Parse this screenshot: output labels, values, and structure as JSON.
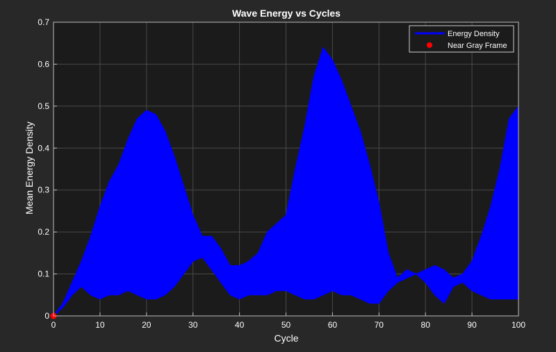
{
  "chart_data": {
    "type": "area",
    "title": "Wave Energy vs Cycles",
    "xlabel": "Cycle",
    "ylabel": "Mean Energy Density",
    "xlim": [
      0,
      100
    ],
    "ylim": [
      0,
      0.7
    ],
    "xticks": [
      0,
      10,
      20,
      30,
      40,
      50,
      60,
      70,
      80,
      90,
      100
    ],
    "yticks": [
      0,
      0.1,
      0.2,
      0.3,
      0.4,
      0.5,
      0.6,
      0.7
    ],
    "grid": true,
    "legend_position": "top-right",
    "series": [
      {
        "name": "Energy Density",
        "kind": "band",
        "color": "#0000ff",
        "x": [
          0,
          2,
          4,
          6,
          8,
          10,
          12,
          14,
          16,
          18,
          20,
          22,
          24,
          26,
          28,
          30,
          32,
          34,
          36,
          38,
          40,
          42,
          44,
          46,
          48,
          50,
          52,
          54,
          56,
          58,
          60,
          62,
          64,
          66,
          68,
          70,
          72,
          74,
          76,
          78,
          80,
          82,
          84,
          86,
          88,
          90,
          92,
          94,
          96,
          98,
          100
        ],
        "upper": [
          0.0,
          0.03,
          0.08,
          0.13,
          0.19,
          0.26,
          0.32,
          0.36,
          0.42,
          0.47,
          0.49,
          0.48,
          0.44,
          0.38,
          0.31,
          0.24,
          0.19,
          0.19,
          0.16,
          0.12,
          0.12,
          0.13,
          0.15,
          0.2,
          0.22,
          0.24,
          0.35,
          0.45,
          0.57,
          0.64,
          0.61,
          0.56,
          0.5,
          0.44,
          0.36,
          0.27,
          0.15,
          0.09,
          0.11,
          0.1,
          0.11,
          0.12,
          0.11,
          0.09,
          0.1,
          0.13,
          0.19,
          0.26,
          0.35,
          0.47,
          0.5
        ],
        "lower": [
          0.0,
          0.02,
          0.05,
          0.07,
          0.05,
          0.04,
          0.05,
          0.05,
          0.06,
          0.05,
          0.04,
          0.04,
          0.05,
          0.07,
          0.1,
          0.13,
          0.14,
          0.11,
          0.08,
          0.05,
          0.04,
          0.05,
          0.05,
          0.05,
          0.06,
          0.06,
          0.05,
          0.04,
          0.04,
          0.05,
          0.06,
          0.05,
          0.05,
          0.04,
          0.03,
          0.03,
          0.06,
          0.08,
          0.09,
          0.1,
          0.08,
          0.05,
          0.03,
          0.07,
          0.08,
          0.06,
          0.05,
          0.04,
          0.04,
          0.04,
          0.04
        ]
      },
      {
        "name": "Near Gray Frame",
        "kind": "marker",
        "color": "#ff0000",
        "x": [
          0
        ],
        "y": [
          0
        ]
      }
    ]
  }
}
